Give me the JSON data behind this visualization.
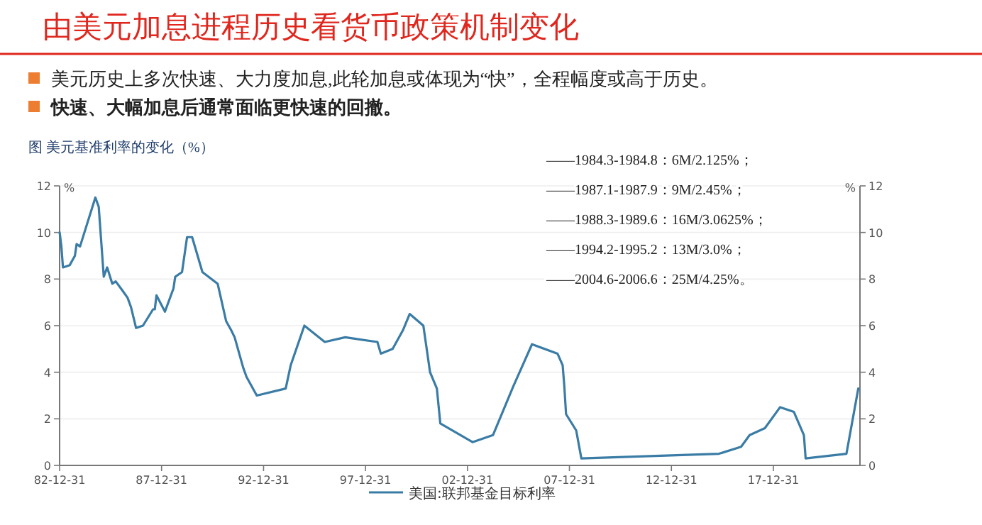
{
  "chart_data": {
    "type": "line",
    "title": "由美元加息进程历史看货币政策机制变化",
    "subtitle": "图 美元基准利率的变化（%）",
    "annotations": [
      "美元历史上多次快速、大力度加息,此轮加息或体现为“快”，全程幅度或高于历史。",
      "快速、大幅加息后通常面临更快速的回撤。",
      "——1984.3-1984.8：6M/2.125%；",
      "——1987.1-1987.9：9M/2.45%；",
      "——1988.3-1989.6：16M/3.0625%；",
      "——1994.2-1995.2：13M/3.0%；",
      "——2004.6-2006.6：25M/4.25%。"
    ],
    "ylabel": "%",
    "y2label": "%",
    "xlim": [
      "1982-12-31",
      "2022-03-31"
    ],
    "xticks": [
      {
        "value": "1982-12-31",
        "label": "82-12-31"
      },
      {
        "value": "1987-12-31",
        "label": "87-12-31"
      },
      {
        "value": "1992-12-31",
        "label": "92-12-31"
      },
      {
        "value": "1997-12-31",
        "label": "97-12-31"
      },
      {
        "value": "2002-12-31",
        "label": "02-12-31"
      },
      {
        "value": "2007-12-31",
        "label": "07-12-31"
      },
      {
        "value": "2012-12-31",
        "label": "12-12-31"
      },
      {
        "value": "2017-12-31",
        "label": "17-12-31"
      }
    ],
    "ylim": [
      0,
      12
    ],
    "yticks": [
      0,
      2,
      4,
      6,
      8,
      10,
      12
    ],
    "y2lim": [
      0,
      12
    ],
    "y2ticks": [
      0,
      2,
      4,
      6,
      8,
      10,
      12
    ],
    "grid": "y",
    "legend": "bottom",
    "series": [
      {
        "name": "美国:联邦基金目标利率",
        "color": "#3a7ca5",
        "x": [
          "1983-01",
          "1983-02",
          "1983-03",
          "1983-07",
          "1983-10",
          "1983-11",
          "1984-01",
          "1984-10",
          "1984-12",
          "1985-03",
          "1985-05",
          "1985-08",
          "1985-10",
          "1986-02",
          "1986-05",
          "1986-07",
          "1986-10",
          "1987-02",
          "1987-08",
          "1987-09",
          "1987-10",
          "1988-03",
          "1988-08",
          "1988-09",
          "1989-01",
          "1989-04",
          "1989-07",
          "1990-01",
          "1990-10",
          "1991-03",
          "1991-06",
          "1991-08",
          "1992-01",
          "1992-03",
          "1992-09",
          "1994-02",
          "1994-05",
          "1995-01",
          "1996-01",
          "1997-01",
          "1998-08",
          "1998-10",
          "1999-05",
          "1999-11",
          "2000-03",
          "2000-11",
          "2001-03",
          "2001-07",
          "2001-09",
          "2003-04",
          "2004-04",
          "2005-04",
          "2006-03",
          "2007-06",
          "2007-09",
          "2007-10",
          "2007-11",
          "2008-05",
          "2008-08",
          "2015-05",
          "2016-06",
          "2016-11",
          "2017-08",
          "2018-05",
          "2019-01",
          "2019-07",
          "2019-08",
          "2021-08",
          "2022-03"
        ],
        "values": [
          10.0,
          9.4,
          8.5,
          8.6,
          9.0,
          9.5,
          9.4,
          11.5,
          11.1,
          8.1,
          8.5,
          7.8,
          7.9,
          7.5,
          7.2,
          6.8,
          5.9,
          6.0,
          6.7,
          6.7,
          7.3,
          6.6,
          7.6,
          8.1,
          8.3,
          9.8,
          9.8,
          8.3,
          7.8,
          6.2,
          5.8,
          5.5,
          4.2,
          3.8,
          3.0,
          3.3,
          4.3,
          6.0,
          5.3,
          5.5,
          5.3,
          4.8,
          5.0,
          5.8,
          6.5,
          6.0,
          4.0,
          3.3,
          1.8,
          1.0,
          1.3,
          3.4,
          5.2,
          4.8,
          4.3,
          3.4,
          2.2,
          1.5,
          0.3,
          0.5,
          0.8,
          1.3,
          1.6,
          2.5,
          2.3,
          1.3,
          0.3,
          0.5,
          3.3
        ]
      }
    ]
  }
}
